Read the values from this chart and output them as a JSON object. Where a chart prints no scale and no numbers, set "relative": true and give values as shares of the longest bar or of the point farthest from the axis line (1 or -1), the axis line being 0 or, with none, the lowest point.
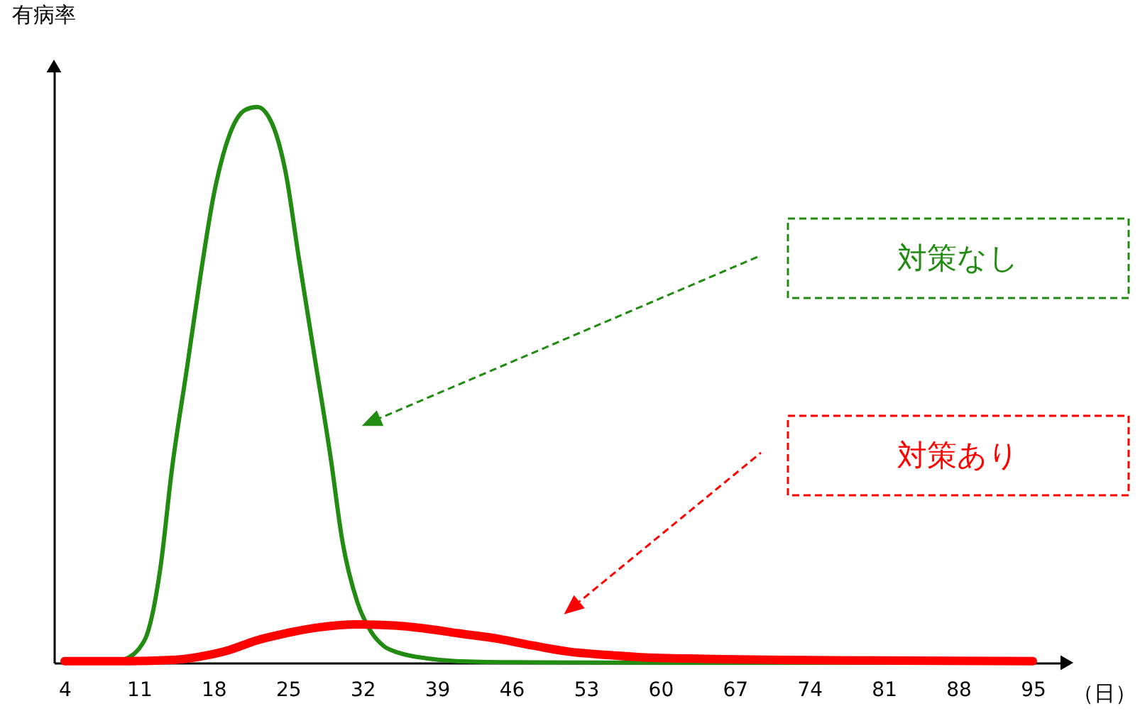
{
  "chart_data": {
    "type": "line",
    "relative": true,
    "ylabel": "有病率",
    "xlabel": "（日）",
    "xlim": [
      3,
      98
    ],
    "xticks": [
      4,
      11,
      18,
      25,
      32,
      39,
      46,
      53,
      60,
      67,
      74,
      81,
      88,
      95
    ],
    "tick_labels": "x",
    "grid": false,
    "legend": "right",
    "marker": "none",
    "line_style": "solid",
    "series": [
      {
        "name": "対策なし",
        "color": "#228b11",
        "x": [
          4,
          8,
          9.5,
          11.5,
          13,
          14.1,
          15.5,
          16.8,
          18,
          19.5,
          21,
          22.1,
          23.5,
          24.8,
          26,
          27.5,
          29,
          30.1,
          31.5,
          32.8,
          34,
          35.4,
          38,
          40.8,
          46,
          60,
          95
        ],
        "values": [
          0,
          0,
          0.005,
          0.04,
          0.17,
          0.35,
          0.53,
          0.7,
          0.84,
          0.95,
          0.995,
          1,
          0.97,
          0.88,
          0.73,
          0.55,
          0.37,
          0.22,
          0.11,
          0.056,
          0.03,
          0.018,
          0.008,
          0.003,
          0.001,
          0,
          0
        ]
      },
      {
        "name": "対策あり",
        "color": "#ff0000",
        "x": [
          4,
          10,
          14.1,
          17,
          19.5,
          22,
          24.8,
          28,
          31.4,
          35,
          38.1,
          41,
          44.8,
          48,
          51.4,
          55,
          58.1,
          64,
          71.4,
          80,
          95
        ],
        "values": [
          0.003,
          0.003,
          0.005,
          0.012,
          0.023,
          0.04,
          0.053,
          0.064,
          0.069,
          0.067,
          0.061,
          0.053,
          0.043,
          0.031,
          0.02,
          0.014,
          0.01,
          0.007,
          0.005,
          0.004,
          0.003
        ]
      }
    ]
  }
}
